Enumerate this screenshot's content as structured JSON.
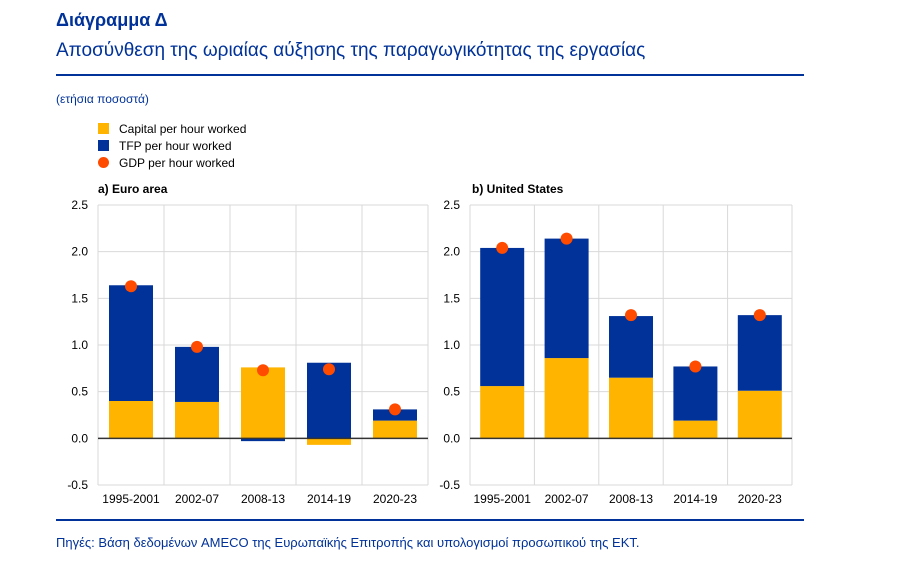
{
  "header": {
    "title": "Διάγραμμα Δ",
    "subtitle": "Αποσύνθεση της ωριαίας αύξησης της παραγωγικότητας της εργασίας",
    "units": "(ετήσια ποσοστά)"
  },
  "legend": [
    {
      "label": "Capital per hour worked",
      "color": "#FFB400",
      "shape": "square"
    },
    {
      "label": "TFP per hour worked",
      "color": "#003299",
      "shape": "square"
    },
    {
      "label": "GDP per hour worked",
      "color": "#FF4B00",
      "shape": "circle"
    }
  ],
  "footer": {
    "source": "Πηγές: Βάση δεδομένων AMECO της Ευρωπαϊκής Επιτροπής και υπολογισμοί προσωπικού της ΕΚΤ."
  },
  "chart_data": [
    {
      "type": "bar",
      "stacked": true,
      "title": "a) Euro area",
      "categories": [
        "1995-2001",
        "2002-07",
        "2008-13",
        "2014-19",
        "2020-23"
      ],
      "series": [
        {
          "name": "Capital per hour worked",
          "values": [
            0.4,
            0.39,
            0.76,
            -0.07,
            0.19
          ],
          "color": "#FFB400"
        },
        {
          "name": "TFP per hour worked",
          "values": [
            1.24,
            0.59,
            -0.03,
            0.81,
            0.12
          ],
          "color": "#003299"
        },
        {
          "name": "GDP per hour worked",
          "type": "scatter",
          "values": [
            1.63,
            0.98,
            0.73,
            0.74,
            0.31
          ],
          "color": "#FF4B00"
        }
      ],
      "ylim": [
        -0.5,
        2.5
      ],
      "yticks": [
        "2.5",
        "2.0",
        "1.5",
        "1.0",
        "0.5",
        "0.0",
        "-0.5"
      ],
      "grid": true
    },
    {
      "type": "bar",
      "stacked": true,
      "title": "b) United States",
      "categories": [
        "1995-2001",
        "2002-07",
        "2008-13",
        "2014-19",
        "2020-23"
      ],
      "series": [
        {
          "name": "Capital per hour worked",
          "values": [
            0.56,
            0.86,
            0.65,
            0.19,
            0.51
          ],
          "color": "#FFB400"
        },
        {
          "name": "TFP per hour worked",
          "values": [
            1.48,
            1.28,
            0.66,
            0.58,
            0.81
          ],
          "color": "#003299"
        },
        {
          "name": "GDP per hour worked",
          "type": "scatter",
          "values": [
            2.04,
            2.14,
            1.32,
            0.77,
            1.32
          ],
          "color": "#FF4B00"
        }
      ],
      "ylim": [
        -0.5,
        2.5
      ],
      "yticks": [
        "2.5",
        "2.0",
        "1.5",
        "1.0",
        "0.5",
        "0.0",
        "-0.5"
      ],
      "grid": true
    }
  ]
}
